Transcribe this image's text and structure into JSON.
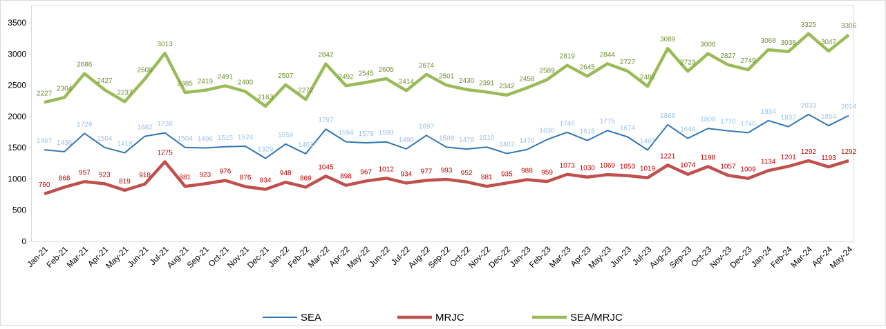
{
  "chart_data": {
    "type": "line",
    "categories": [
      "Jan-21",
      "Feb-21",
      "Mar-21",
      "Apr-21",
      "May-21",
      "Jun-21",
      "Jul-21",
      "Aug-21",
      "Sep-21",
      "Oct-21",
      "Nov-21",
      "Dec-21",
      "Jan-22",
      "Feb-22",
      "Mar-22",
      "Apr-22",
      "May-22",
      "Jun-22",
      "Jul-22",
      "Aug-22",
      "Sep-22",
      "Oct-22",
      "Nov-22",
      "Dec-22",
      "Jan-23",
      "Feb-23",
      "Mar-23",
      "Apr-23",
      "May-23",
      "Jun-23",
      "Jul-23",
      "Aug-23",
      "Sep-23",
      "Oct-23",
      "Nov-23",
      "Dec-23",
      "Jan-24",
      "Feb-24",
      "Mar-24",
      "Apr-24",
      "May-24"
    ],
    "series": [
      {
        "name": "SEA",
        "color": "#2e75b6",
        "values": [
          1467,
          1436,
          1729,
          1504,
          1418,
          1682,
          1738,
          1504,
          1496,
          1515,
          1524,
          1329,
          1559,
          1403,
          1797,
          1594,
          1578,
          1593,
          1480,
          1697,
          1508,
          1478,
          1510,
          1407,
          1470,
          1630,
          1746,
          1615,
          1775,
          1674,
          1463,
          1868,
          1649,
          1808,
          1770,
          1740,
          1934,
          1837,
          2033,
          1854,
          2014
        ]
      },
      {
        "name": "MRJC",
        "color": "#c0504d",
        "values": [
          760,
          868,
          957,
          923,
          819,
          918,
          1275,
          881,
          923,
          976,
          876,
          834,
          948,
          869,
          1045,
          898,
          967,
          1012,
          934,
          977,
          993,
          952,
          881,
          935,
          988,
          959,
          1073,
          1030,
          1069,
          1053,
          1019,
          1221,
          1074,
          1198,
          1057,
          1009,
          1134,
          1201,
          1292,
          1193,
          1292
        ]
      },
      {
        "name": "SEA/MRJC",
        "color": "#9bbb59",
        "values": [
          2227,
          2304,
          2686,
          2427,
          2237,
          2600,
          3013,
          2385,
          2419,
          2491,
          2400,
          2163,
          2507,
          2272,
          2842,
          2492,
          2545,
          2605,
          2414,
          2674,
          2501,
          2430,
          2391,
          2342,
          2458,
          2589,
          2819,
          2645,
          2844,
          2727,
          2482,
          3089,
          2723,
          3006,
          2827,
          2749,
          3068,
          3038,
          3325,
          3047,
          3306
        ]
      }
    ],
    "ylim": [
      0,
      3500
    ],
    "yticks": [
      0,
      500,
      1000,
      1500,
      2000,
      2500,
      3000,
      3500
    ],
    "legend": "bottom"
  }
}
